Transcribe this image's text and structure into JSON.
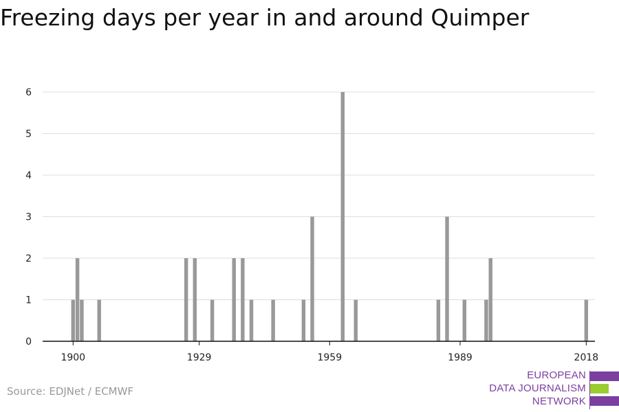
{
  "title": "Freezing days per year in and around Quimper",
  "source": "Source: EDJNet / ECMWF",
  "logo": {
    "lines": [
      "EUROPEAN",
      "DATA JOURNALISM",
      "NETWORK"
    ],
    "colors": {
      "purple": "#7b3fa0",
      "green": "#9acd32"
    }
  },
  "chart_data": {
    "type": "bar",
    "title": "Freezing days per year in and around Quimper",
    "xlabel": "",
    "ylabel": "",
    "xlim": [
      1893,
      2020
    ],
    "ylim": [
      0,
      6
    ],
    "x_ticks": [
      1900,
      1929,
      1959,
      1989,
      2018
    ],
    "y_ticks": [
      0,
      1,
      2,
      3,
      4,
      5,
      6
    ],
    "grid": true,
    "bar_color": "#999999",
    "x": [
      1900,
      1901,
      1902,
      1906,
      1926,
      1928,
      1932,
      1937,
      1939,
      1941,
      1946,
      1953,
      1955,
      1962,
      1965,
      1984,
      1986,
      1990,
      1995,
      1996,
      2018
    ],
    "values": [
      1,
      2,
      1,
      1,
      2,
      2,
      1,
      2,
      2,
      1,
      1,
      1,
      3,
      6,
      1,
      1,
      3,
      1,
      1,
      2,
      1
    ]
  }
}
